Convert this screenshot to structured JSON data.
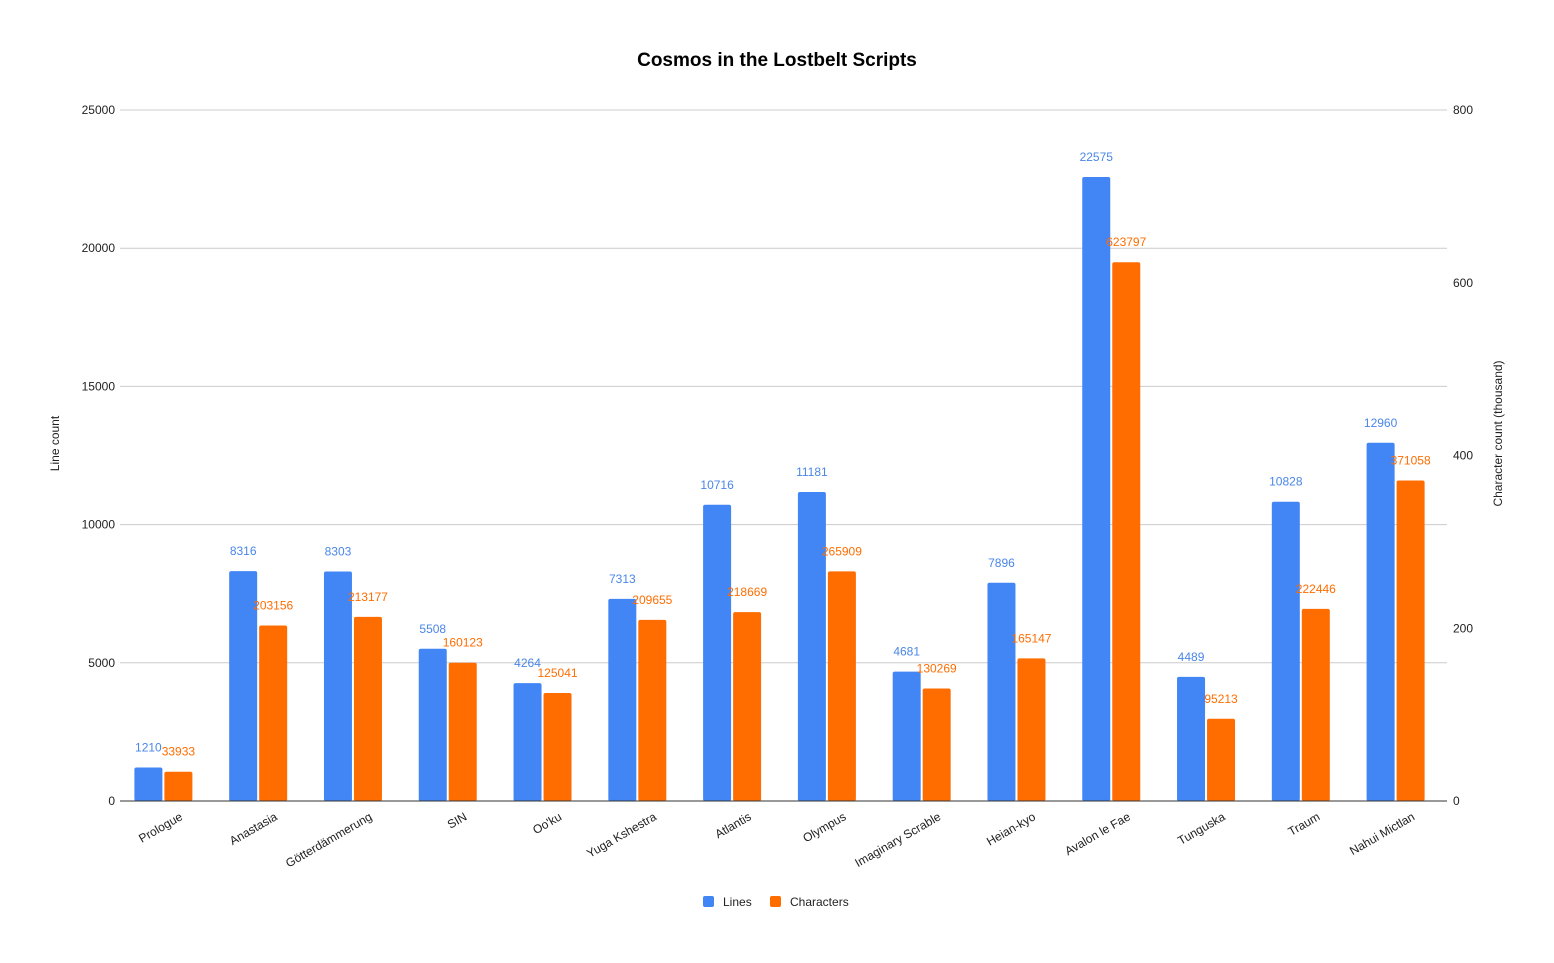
{
  "chart_data": {
    "type": "bar",
    "title": "Cosmos in the Lostbelt Scripts",
    "xlabel": "",
    "ylabel": "Line count",
    "y2label": "Character count (thousand)",
    "ylim": [
      0,
      25000
    ],
    "y2lim": [
      0,
      800
    ],
    "yticks": [
      "0",
      "5000",
      "10000",
      "15000",
      "20000",
      "25000"
    ],
    "y2ticks": [
      "0",
      "200",
      "400",
      "600",
      "800"
    ],
    "grid": true,
    "legend_position": "bottom",
    "categories": [
      "Prologue",
      "Anastasia",
      "Götterdämmerung",
      "SIN",
      "Oo'ku",
      "Yuga Kshestra",
      "Atlantis",
      "Olympus",
      "Imaginary Scrable",
      "Heian-kyo",
      "Avalon le Fae",
      "Tunguska",
      "Traum",
      "Nahui Mictlan"
    ],
    "series": [
      {
        "name": "Lines",
        "axis": "left",
        "color": "#4285f4",
        "label_color": "#4a86e8",
        "values": [
          1210,
          8316,
          8303,
          5508,
          4264,
          7313,
          10716,
          11181,
          4681,
          7896,
          22575,
          4489,
          10828,
          12960
        ]
      },
      {
        "name": "Characters",
        "axis": "right",
        "color": "#ff6d01",
        "label_color": "#ff6d01",
        "values": [
          33933,
          203156,
          213177,
          160123,
          125041,
          209655,
          218669,
          265909,
          130269,
          165147,
          623797,
          95213,
          222446,
          371058
        ]
      }
    ]
  }
}
